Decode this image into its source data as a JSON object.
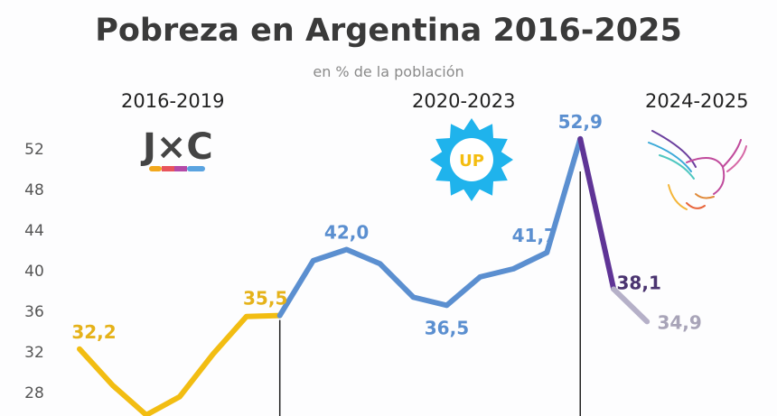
{
  "chart_data": {
    "type": "line",
    "title": "Pobreza en Argentina 2016-2025",
    "subtitle": "en % de la población",
    "xlabel": "",
    "ylabel": "",
    "ylim": [
      25.6,
      52.9
    ],
    "yticks": [
      28,
      32,
      36,
      40,
      44,
      48,
      52
    ],
    "ytick_labels": [
      "28",
      "32",
      "36",
      "40",
      "44",
      "48",
      "52"
    ],
    "grid": false,
    "x": [
      0,
      1,
      2,
      3,
      4,
      5,
      6,
      7,
      8,
      9,
      10,
      11,
      12,
      13,
      14,
      15,
      16,
      17
    ],
    "series": [
      {
        "period": "2016-2019",
        "color": "#f2bd12",
        "x": [
          0,
          1,
          2,
          3,
          4,
          5,
          6
        ],
        "values": [
          32.2,
          28.6,
          25.7,
          27.5,
          31.7,
          35.4,
          35.5
        ]
      },
      {
        "period": "2020-2023",
        "color": "#5b8fd0",
        "x": [
          6,
          7,
          8,
          9,
          10,
          11,
          12,
          13,
          14,
          15
        ],
        "values": [
          35.5,
          40.9,
          42.0,
          40.6,
          37.3,
          36.5,
          39.3,
          40.1,
          41.7,
          52.9
        ]
      },
      {
        "period": "2024-2025",
        "color": "#5f3496",
        "x": [
          15,
          16
        ],
        "values": [
          52.9,
          38.1
        ]
      },
      {
        "period": "2024-2025",
        "color": "#b5b0c8",
        "x": [
          16,
          17
        ],
        "values": [
          38.1,
          34.9
        ]
      }
    ],
    "data_labels": [
      {
        "x": 0,
        "y": 32.2,
        "text": "32,2",
        "color": "#e5b21a"
      },
      {
        "x": 6,
        "y": 35.5,
        "text": "35,5",
        "color": "#e5b21a"
      },
      {
        "x": 8,
        "y": 42.0,
        "text": "42,0",
        "color": "#5b8fd0"
      },
      {
        "x": 11,
        "y": 36.5,
        "text": "36,5",
        "color": "#5b8fd0"
      },
      {
        "x": 14,
        "y": 41.7,
        "text": "41,7",
        "color": "#5b8fd0"
      },
      {
        "x": 15,
        "y": 52.9,
        "text": "52,9",
        "color": "#5b8fd0"
      },
      {
        "x": 16,
        "y": 38.1,
        "text": "38,1",
        "color": "#4a3470"
      },
      {
        "x": 17,
        "y": 34.9,
        "text": "34,9",
        "color": "#a8a4b8"
      }
    ],
    "period_dividers_x": [
      6,
      15
    ],
    "periods": [
      {
        "label": "2016-2019",
        "logo_text": "J×C",
        "logo": "jxc-logo"
      },
      {
        "label": "2020-2023",
        "logo_text": "UP",
        "logo": "sun-logo"
      },
      {
        "label": "2024-2025",
        "logo": "eagle-logo"
      }
    ]
  }
}
